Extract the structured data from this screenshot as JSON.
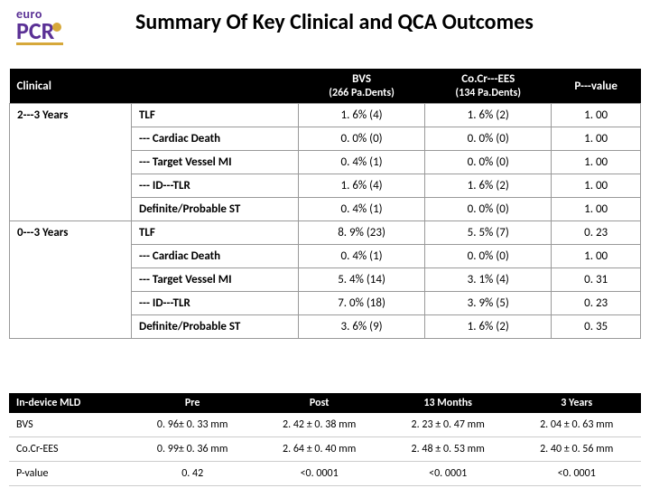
{
  "colors": {
    "header_bg": "#000000",
    "header_text": "#ffffff",
    "border": "#999999",
    "logo_purple": "#5a3095",
    "logo_gold": "#d6a83a"
  },
  "logo": {
    "top": "euro",
    "bottom": "PCR"
  },
  "title": "Summary Of Key Clinical and QCA Outcomes",
  "tableA": {
    "headers": {
      "clinical": "Clinical",
      "bvs_line1": "BVS",
      "bvs_line2": "(266 Pa.Dents)",
      "cocr_line1": "Co.Cr---EES",
      "cocr_line2": "(134 Pa.Dents)",
      "pval": "P---value"
    },
    "groups": [
      {
        "name": "2---3 Years",
        "rows": [
          {
            "label": "TLF",
            "bvs": "1. 6% (4)",
            "cocr": "1. 6% (2)",
            "p": "1. 00"
          },
          {
            "label": "--- Cardiac Death",
            "bvs": "0. 0% (0)",
            "cocr": "0. 0% (0)",
            "p": "1. 00"
          },
          {
            "label": "--- Target Vessel MI",
            "bvs": "0. 4% (1)",
            "cocr": "0. 0% (0)",
            "p": "1. 00"
          },
          {
            "label": "--- ID---TLR",
            "bvs": "1. 6% (4)",
            "cocr": "1. 6% (2)",
            "p": "1. 00"
          },
          {
            "label": "Definite/Probable ST",
            "bvs": "0. 4% (1)",
            "cocr": "0. 0% (0)",
            "p": "1. 00"
          }
        ]
      },
      {
        "name": "0---3 Years",
        "rows": [
          {
            "label": "TLF",
            "bvs": "8. 9% (23)",
            "cocr": "5. 5% (7)",
            "p": "0. 23"
          },
          {
            "label": "--- Cardiac Death",
            "bvs": "0. 4% (1)",
            "cocr": "0. 0% (0)",
            "p": "1. 00"
          },
          {
            "label": "--- Target Vessel MI",
            "bvs": "5. 4% (14)",
            "cocr": "3. 1% (4)",
            "p": "0. 31"
          },
          {
            "label": "--- ID---TLR",
            "bvs": "7. 0% (18)",
            "cocr": "3. 9% (5)",
            "p": "0. 23"
          },
          {
            "label": "Definite/Probable ST",
            "bvs": "3. 6% (9)",
            "cocr": "1. 6% (2)",
            "p": "0. 35"
          }
        ]
      }
    ]
  },
  "tableB": {
    "headers": [
      "In-device MLD",
      "Pre",
      "Post",
      "13 Months",
      "3 Years"
    ],
    "rows": [
      {
        "label": "BVS",
        "c": [
          "0. 96± 0. 33 mm",
          "2. 42 ± 0. 38 mm",
          "2. 23 ± 0. 47 mm",
          "2. 04 ± 0. 63 mm"
        ]
      },
      {
        "label": "Co.Cr-EES",
        "c": [
          "0. 99± 0. 36 mm",
          "2. 64 ± 0. 40 mm",
          "2. 48 ± 0. 53 mm",
          "2. 40 ± 0. 56 mm"
        ]
      },
      {
        "label": "P-value",
        "c": [
          "0. 42",
          "<0. 0001",
          "<0. 0001",
          "<0. 0001"
        ]
      }
    ]
  }
}
